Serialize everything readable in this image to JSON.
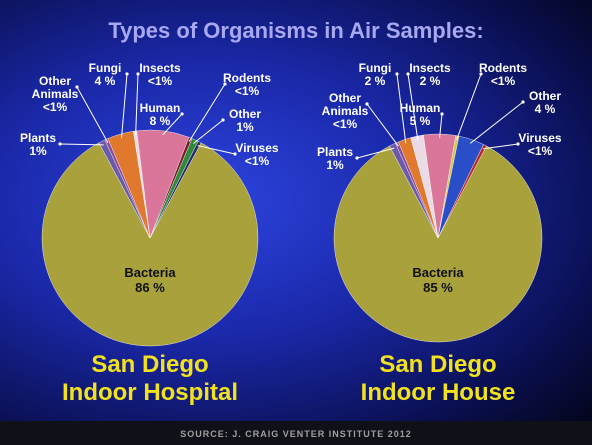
{
  "title": "Types of Organisms in Air Samples:",
  "source": "SOURCE: J. CRAIG VENTER INSTITUTE 2012",
  "chart_data": [
    {
      "type": "pie",
      "title": [
        "San Diego",
        "Indoor Hospital"
      ],
      "categories": [
        "Bacteria",
        "Plants",
        "Other Animals",
        "Fungi",
        "Insects",
        "Human",
        "Rodents",
        "Other",
        "Viruses"
      ],
      "values": [
        86,
        1,
        0.5,
        4,
        0.5,
        8,
        0.5,
        1,
        0.5
      ],
      "value_labels": [
        "86 %",
        "1%",
        "<1%",
        "4 %",
        "<1%",
        "8 %",
        "<1%",
        "1%",
        "<1%"
      ],
      "colors": [
        "#a9a23c",
        "#6a5aa8",
        "#8a4a9a",
        "#e0782e",
        "#eadbe6",
        "#d9769a",
        "#7a1a2a",
        "#2f8a3a",
        "#2a2a6a"
      ]
    },
    {
      "type": "pie",
      "title": [
        "San Diego",
        "Indoor House"
      ],
      "categories": [
        "Bacteria",
        "Plants",
        "Other Animals",
        "Fungi",
        "Insects",
        "Human",
        "Rodents",
        "Other",
        "Viruses"
      ],
      "values": [
        85,
        1,
        0.5,
        2,
        2,
        5,
        0.5,
        4,
        0.5
      ],
      "value_labels": [
        "85 %",
        "1%",
        "<1%",
        "2 %",
        "2 %",
        "5 %",
        "<1%",
        "4 %",
        "<1%"
      ],
      "colors": [
        "#a9a23c",
        "#6a5aa8",
        "#8a4a9a",
        "#e0782e",
        "#eadbe6",
        "#d9769a",
        "#d8c848",
        "#2a4ec8",
        "#c02424"
      ]
    }
  ]
}
